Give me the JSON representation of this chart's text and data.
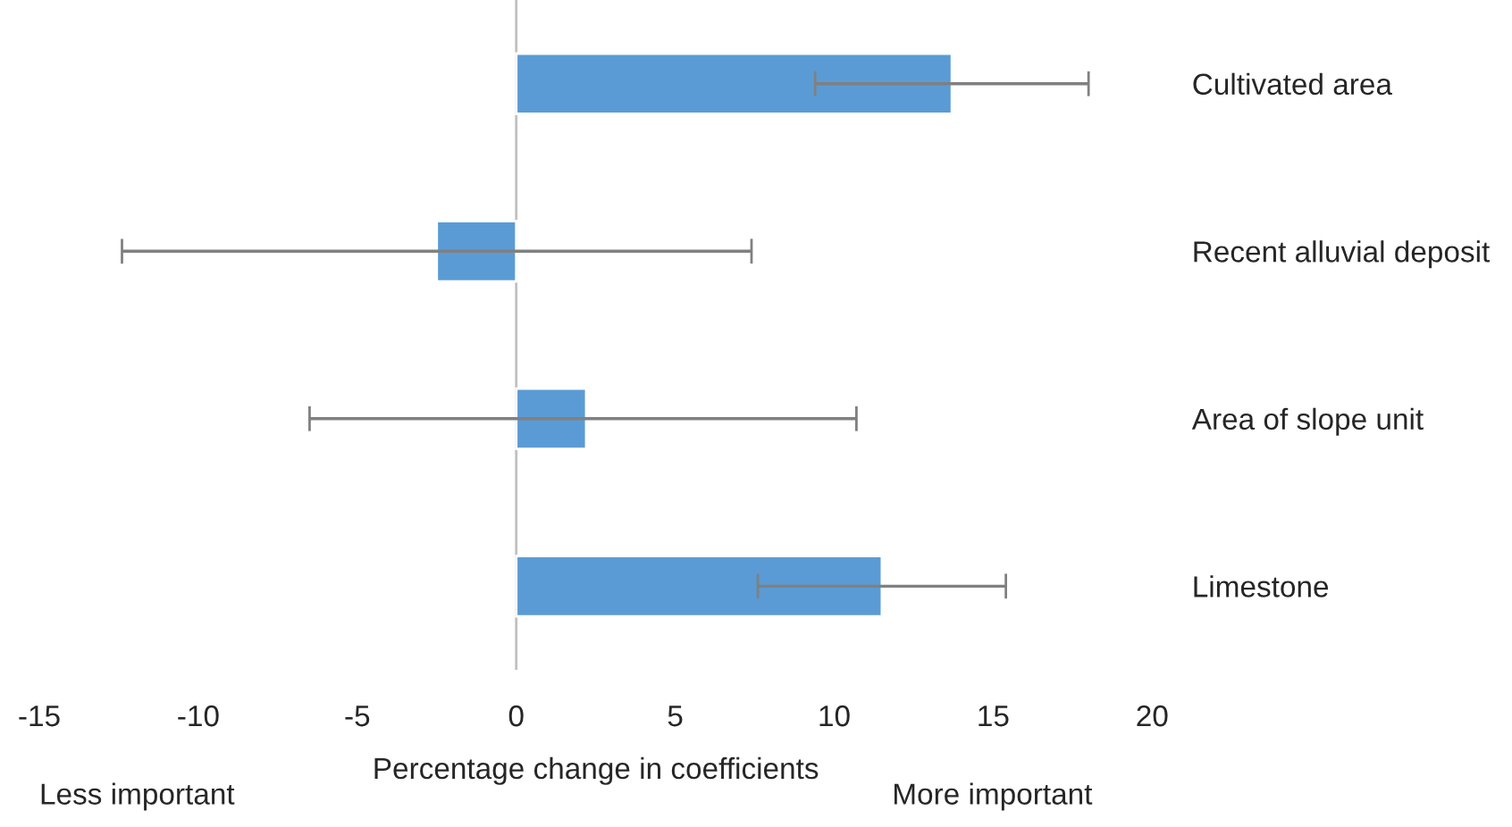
{
  "chart_data": {
    "type": "bar",
    "orientation": "horizontal",
    "categories": [
      "Cultivated area",
      "Recent alluvial deposit",
      "Area of slope unit",
      "Limestone"
    ],
    "values": [
      13.7,
      -2.5,
      2.2,
      11.5
    ],
    "errors": [
      [
        9.4,
        18.0
      ],
      [
        -12.4,
        7.4
      ],
      [
        -6.5,
        10.7
      ],
      [
        7.6,
        15.4
      ]
    ],
    "color": "#5b9bd5",
    "xlim": [
      -15,
      20
    ],
    "xticks": [
      -15,
      -10,
      -5,
      0,
      5,
      10,
      15,
      20
    ],
    "xlabel": "Percentage change in coefficients",
    "annotations": [
      "Less important",
      "More important"
    ],
    "ref_lines": [
      {
        "axis": "x",
        "value": 0,
        "color": "#c0c0c0"
      }
    ],
    "legend": false
  }
}
